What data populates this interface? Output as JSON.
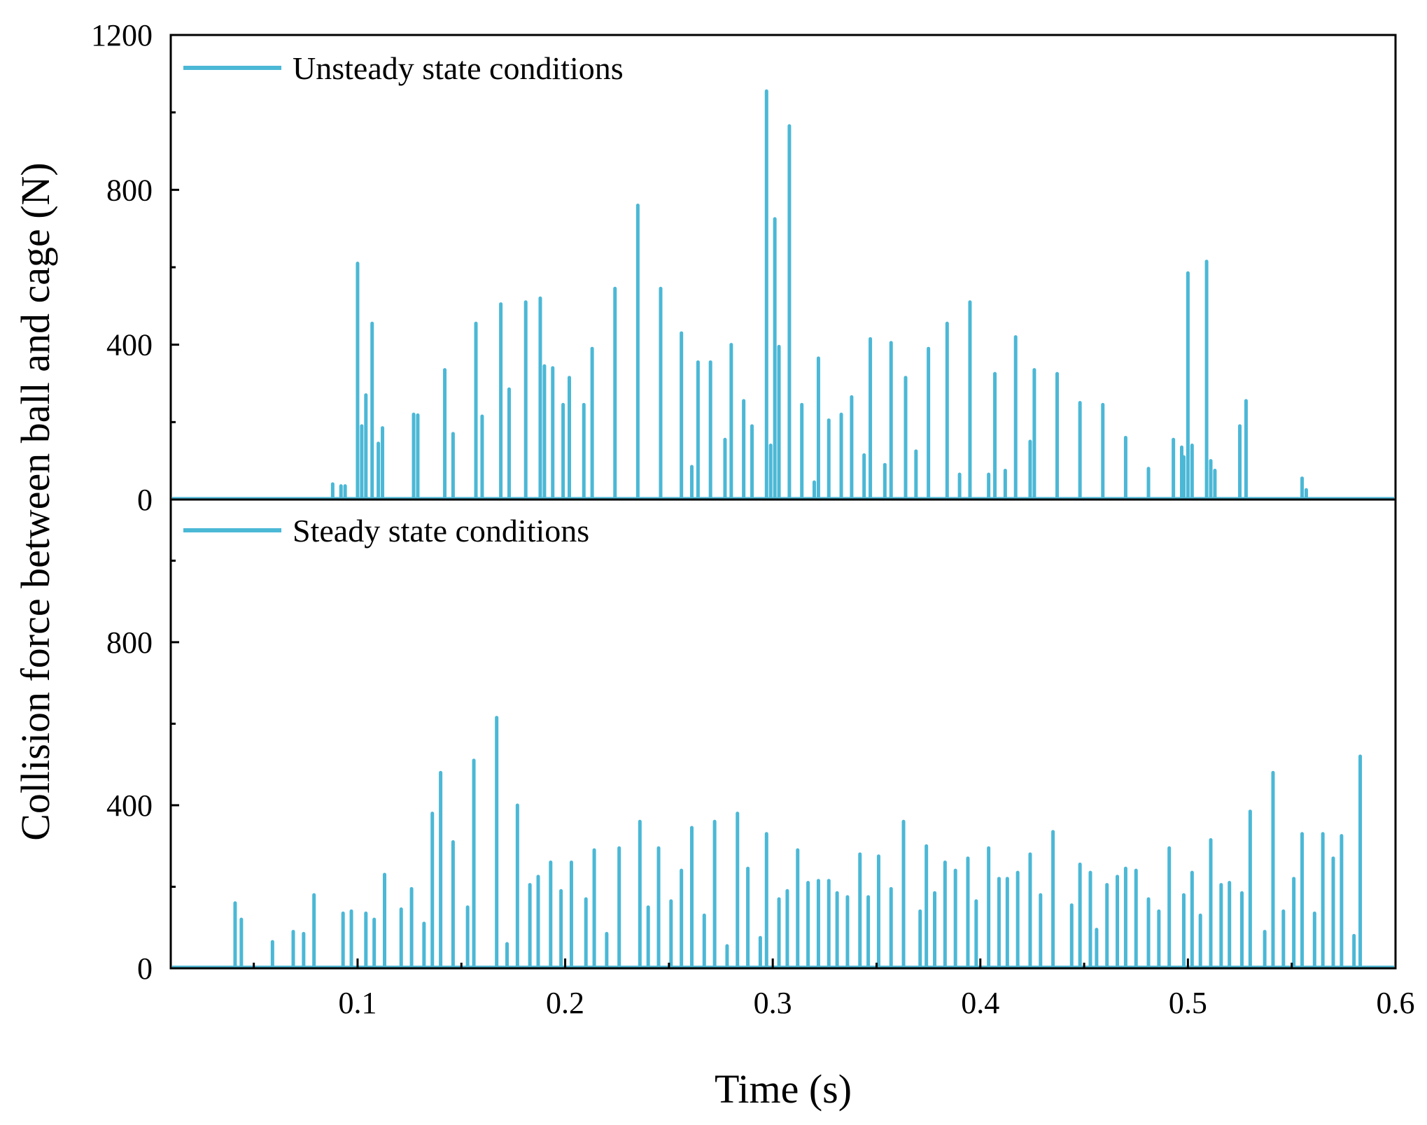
{
  "colors": {
    "series": "#4bb8d6",
    "axis": "#000000",
    "background": "#ffffff"
  },
  "axes": {
    "xlabel": "Time (s)",
    "ylabel": "Collision force between ball and cage (N)",
    "x_tick_labels": [
      "0.1",
      "0.2",
      "0.3",
      "0.4",
      "0.5",
      "0.6"
    ]
  },
  "chart_data": [
    {
      "type": "line",
      "title": "",
      "legend": "Unsteady state conditions",
      "legend_position": "top-left",
      "xlim": [
        0.01,
        0.6
      ],
      "ylim": [
        0,
        1200
      ],
      "y_ticks": [
        0,
        400,
        800,
        1200
      ],
      "y_tick_labels": [
        "0",
        "400",
        "800",
        "1200"
      ],
      "baseline": 3,
      "pulses": [
        [
          0.088,
          40
        ],
        [
          0.092,
          35
        ],
        [
          0.094,
          35
        ],
        [
          0.1,
          610
        ],
        [
          0.102,
          190
        ],
        [
          0.104,
          270
        ],
        [
          0.107,
          455
        ],
        [
          0.11,
          145
        ],
        [
          0.112,
          185
        ],
        [
          0.127,
          220
        ],
        [
          0.129,
          218
        ],
        [
          0.142,
          335
        ],
        [
          0.146,
          170
        ],
        [
          0.157,
          455
        ],
        [
          0.16,
          215
        ],
        [
          0.169,
          505
        ],
        [
          0.173,
          285
        ],
        [
          0.181,
          510
        ],
        [
          0.188,
          520
        ],
        [
          0.19,
          345
        ],
        [
          0.194,
          340
        ],
        [
          0.199,
          245
        ],
        [
          0.202,
          315
        ],
        [
          0.209,
          245
        ],
        [
          0.213,
          390
        ],
        [
          0.224,
          545
        ],
        [
          0.235,
          760
        ],
        [
          0.246,
          545
        ],
        [
          0.256,
          430
        ],
        [
          0.261,
          85
        ],
        [
          0.264,
          355
        ],
        [
          0.27,
          355
        ],
        [
          0.277,
          155
        ],
        [
          0.28,
          400
        ],
        [
          0.286,
          255
        ],
        [
          0.29,
          190
        ],
        [
          0.297,
          1055
        ],
        [
          0.299,
          140
        ],
        [
          0.301,
          725
        ],
        [
          0.303,
          395
        ],
        [
          0.308,
          965
        ],
        [
          0.314,
          245
        ],
        [
          0.32,
          45
        ],
        [
          0.322,
          365
        ],
        [
          0.327,
          205
        ],
        [
          0.333,
          220
        ],
        [
          0.338,
          265
        ],
        [
          0.344,
          115
        ],
        [
          0.347,
          415
        ],
        [
          0.354,
          90
        ],
        [
          0.357,
          405
        ],
        [
          0.364,
          315
        ],
        [
          0.369,
          125
        ],
        [
          0.375,
          390
        ],
        [
          0.384,
          455
        ],
        [
          0.39,
          65
        ],
        [
          0.395,
          510
        ],
        [
          0.404,
          65
        ],
        [
          0.407,
          325
        ],
        [
          0.412,
          75
        ],
        [
          0.417,
          420
        ],
        [
          0.424,
          150
        ],
        [
          0.426,
          335
        ],
        [
          0.437,
          325
        ],
        [
          0.448,
          250
        ],
        [
          0.459,
          245
        ],
        [
          0.47,
          160
        ],
        [
          0.481,
          80
        ],
        [
          0.493,
          155
        ],
        [
          0.497,
          135
        ],
        [
          0.498,
          110
        ],
        [
          0.5,
          585
        ],
        [
          0.502,
          140
        ],
        [
          0.509,
          615
        ],
        [
          0.511,
          100
        ],
        [
          0.513,
          75
        ],
        [
          0.525,
          190
        ],
        [
          0.528,
          255
        ],
        [
          0.555,
          55
        ],
        [
          0.557,
          25
        ]
      ]
    },
    {
      "type": "line",
      "title": "",
      "legend": "Steady state conditions",
      "legend_position": "top-left",
      "xlim": [
        0.01,
        0.6
      ],
      "ylim": [
        0,
        1150
      ],
      "y_ticks": [
        0,
        400,
        800
      ],
      "y_tick_labels": [
        "0",
        "400",
        "800"
      ],
      "baseline": 3,
      "pulses": [
        [
          0.041,
          160
        ],
        [
          0.044,
          120
        ],
        [
          0.059,
          65
        ],
        [
          0.069,
          90
        ],
        [
          0.074,
          85
        ],
        [
          0.079,
          180
        ],
        [
          0.093,
          135
        ],
        [
          0.097,
          140
        ],
        [
          0.104,
          135
        ],
        [
          0.108,
          120
        ],
        [
          0.113,
          230
        ],
        [
          0.121,
          145
        ],
        [
          0.126,
          195
        ],
        [
          0.132,
          110
        ],
        [
          0.136,
          380
        ],
        [
          0.14,
          480
        ],
        [
          0.146,
          310
        ],
        [
          0.153,
          150
        ],
        [
          0.156,
          510
        ],
        [
          0.167,
          615
        ],
        [
          0.172,
          60
        ],
        [
          0.177,
          400
        ],
        [
          0.183,
          205
        ],
        [
          0.187,
          225
        ],
        [
          0.193,
          260
        ],
        [
          0.198,
          190
        ],
        [
          0.203,
          260
        ],
        [
          0.21,
          170
        ],
        [
          0.214,
          290
        ],
        [
          0.22,
          85
        ],
        [
          0.226,
          295
        ],
        [
          0.236,
          360
        ],
        [
          0.24,
          150
        ],
        [
          0.245,
          295
        ],
        [
          0.251,
          165
        ],
        [
          0.256,
          240
        ],
        [
          0.261,
          345
        ],
        [
          0.267,
          130
        ],
        [
          0.272,
          360
        ],
        [
          0.278,
          55
        ],
        [
          0.283,
          380
        ],
        [
          0.288,
          245
        ],
        [
          0.294,
          75
        ],
        [
          0.297,
          330
        ],
        [
          0.303,
          170
        ],
        [
          0.307,
          190
        ],
        [
          0.312,
          290
        ],
        [
          0.317,
          210
        ],
        [
          0.322,
          215
        ],
        [
          0.327,
          215
        ],
        [
          0.331,
          185
        ],
        [
          0.336,
          175
        ],
        [
          0.342,
          280
        ],
        [
          0.346,
          175
        ],
        [
          0.351,
          275
        ],
        [
          0.357,
          195
        ],
        [
          0.363,
          360
        ],
        [
          0.371,
          140
        ],
        [
          0.374,
          300
        ],
        [
          0.378,
          185
        ],
        [
          0.383,
          260
        ],
        [
          0.388,
          240
        ],
        [
          0.394,
          270
        ],
        [
          0.398,
          165
        ],
        [
          0.404,
          295
        ],
        [
          0.409,
          220
        ],
        [
          0.413,
          220
        ],
        [
          0.418,
          235
        ],
        [
          0.424,
          280
        ],
        [
          0.429,
          180
        ],
        [
          0.435,
          335
        ],
        [
          0.444,
          155
        ],
        [
          0.448,
          255
        ],
        [
          0.453,
          235
        ],
        [
          0.456,
          95
        ],
        [
          0.461,
          205
        ],
        [
          0.466,
          225
        ],
        [
          0.47,
          245
        ],
        [
          0.475,
          240
        ],
        [
          0.481,
          170
        ],
        [
          0.486,
          140
        ],
        [
          0.491,
          295
        ],
        [
          0.498,
          180
        ],
        [
          0.502,
          235
        ],
        [
          0.506,
          130
        ],
        [
          0.511,
          315
        ],
        [
          0.516,
          205
        ],
        [
          0.52,
          210
        ],
        [
          0.526,
          185
        ],
        [
          0.53,
          385
        ],
        [
          0.537,
          90
        ],
        [
          0.541,
          480
        ],
        [
          0.546,
          140
        ],
        [
          0.551,
          220
        ],
        [
          0.555,
          330
        ],
        [
          0.561,
          135
        ],
        [
          0.565,
          330
        ],
        [
          0.57,
          270
        ],
        [
          0.574,
          325
        ],
        [
          0.58,
          80
        ],
        [
          0.583,
          520
        ]
      ]
    }
  ]
}
